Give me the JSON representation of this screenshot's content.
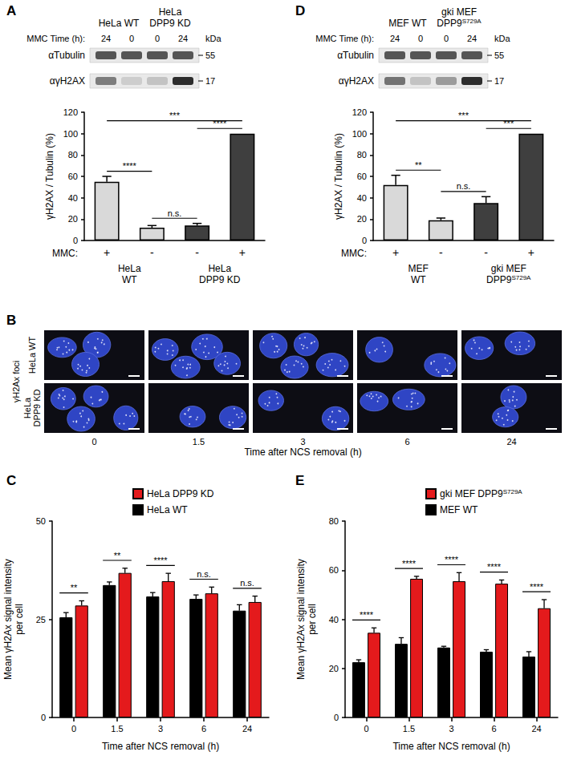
{
  "chart_data": [
    {
      "panel_label": "A",
      "type": "bar",
      "y_label": "γH2AX / Tubulin (%)",
      "x_row_label": "MMC:",
      "categories": [
        "+",
        "-",
        "-",
        "+"
      ],
      "group_labels": [
        "HeLa\nWT",
        "HeLa\nWT",
        "HeLa\nDPP9 KD",
        "HeLa\nDPP9 KD"
      ],
      "values": [
        55,
        12,
        14,
        100
      ],
      "errors": [
        5,
        2,
        2,
        0
      ],
      "colors": [
        "#d9d9d9",
        "#d9d9d9",
        "#3f3f3f",
        "#3f3f3f"
      ],
      "ylim": [
        0,
        120
      ],
      "yticks": [
        0,
        20,
        40,
        60,
        80,
        100,
        120
      ],
      "grid": false,
      "significance": [
        {
          "from": 0,
          "to": 3,
          "label": "***"
        },
        {
          "from": 0,
          "to": 1,
          "label": "****"
        },
        {
          "from": 1,
          "to": 2,
          "label": "n.s."
        },
        {
          "from": 2,
          "to": 3,
          "label": "****"
        }
      ]
    },
    {
      "panel_label": "C",
      "type": "bar",
      "y_label": "Mean γH2Ax signal intensity\nper cell",
      "x_label": "Time after NCS removal (h)",
      "categories": [
        "0",
        "1.5",
        "3",
        "6",
        "24"
      ],
      "legend": "top-left",
      "grid": false,
      "series": [
        {
          "name": "HeLa DPP9 KD",
          "color": "#e41a1c",
          "values": [
            28.5,
            36.8,
            34.7,
            31.6,
            29.4
          ],
          "errors": [
            1.2,
            1.2,
            2.0,
            1.6,
            1.5
          ]
        },
        {
          "name": "HeLa WT",
          "color": "#000000",
          "values": [
            25.5,
            33.7,
            30.8,
            30.2,
            27.2
          ],
          "errors": [
            1.2,
            0.8,
            1.0,
            1.0,
            1.5
          ]
        }
      ],
      "ylim": [
        0,
        50
      ],
      "yticks": [
        0,
        25,
        50
      ],
      "significance": [
        {
          "category": 0,
          "label": "**"
        },
        {
          "category": 1,
          "label": "**"
        },
        {
          "category": 2,
          "label": "****"
        },
        {
          "category": 3,
          "label": "n.s."
        },
        {
          "category": 4,
          "label": "n.s."
        }
      ]
    },
    {
      "panel_label": "D",
      "type": "bar",
      "y_label": "γH2AX / Tubulin (%)",
      "x_row_label": "MMC:",
      "categories": [
        "+",
        "-",
        "-",
        "+"
      ],
      "group_labels": [
        "MEF\nWT",
        "MEF\nWT",
        {
          "text": "gki MEF\nDPP9",
          "sup": "S729A"
        },
        {
          "text": "gki MEF\nDPP9",
          "sup": "S729A"
        }
      ],
      "values": [
        52,
        19,
        35,
        100
      ],
      "errors": [
        9,
        2,
        6,
        0
      ],
      "colors": [
        "#d9d9d9",
        "#d9d9d9",
        "#3f3f3f",
        "#3f3f3f"
      ],
      "ylim": [
        0,
        120
      ],
      "yticks": [
        0,
        20,
        40,
        60,
        80,
        100,
        120
      ],
      "grid": false,
      "significance": [
        {
          "from": 0,
          "to": 3,
          "label": "***"
        },
        {
          "from": 0,
          "to": 1,
          "label": "**"
        },
        {
          "from": 1,
          "to": 2,
          "label": "n.s."
        },
        {
          "from": 2,
          "to": 3,
          "label": "***"
        }
      ]
    },
    {
      "panel_label": "E",
      "type": "bar",
      "y_label": "Mean γH2Ax signal intensity\nper cell",
      "x_label": "Time after NCS removal (h)",
      "categories": [
        "0",
        "1.5",
        "3",
        "6",
        "24"
      ],
      "legend": "top-left",
      "grid": false,
      "series": [
        {
          "name": {
            "text": "gki MEF DPP9",
            "sup": "S729A"
          },
          "color": "#e41a1c",
          "values": [
            34.5,
            56.5,
            55.5,
            54.5,
            44.5
          ],
          "errors": [
            2.0,
            1.0,
            3.5,
            1.5,
            3.5
          ]
        },
        {
          "name": "MEF WT",
          "color": "#000000",
          "values": [
            22.5,
            30.0,
            28.5,
            26.8,
            24.8
          ],
          "errors": [
            1.0,
            2.5,
            0.5,
            0.8,
            2.0
          ]
        }
      ],
      "ylim": [
        0,
        80
      ],
      "yticks": [
        0,
        20,
        40,
        60,
        80
      ],
      "significance": [
        {
          "category": 0,
          "label": "****"
        },
        {
          "category": 1,
          "label": "****"
        },
        {
          "category": 2,
          "label": "****"
        },
        {
          "category": 3,
          "label": "****"
        },
        {
          "category": 4,
          "label": "****"
        }
      ]
    }
  ],
  "blots": [
    {
      "lane_groups": [
        "HeLa WT",
        "HeLa WT",
        "HeLa\nDPP9 KD",
        "HeLa\nDPP9 KD"
      ],
      "row_label": "MMC Time (h):",
      "lanes": [
        24,
        0,
        0,
        24
      ],
      "unit_label": "kDa",
      "bands": [
        {
          "label": "αTubulin",
          "kda": 55,
          "intensity": [
            0.75,
            0.75,
            0.75,
            0.75
          ]
        },
        {
          "label": "αγH2AX",
          "kda": 17,
          "intensity": [
            0.55,
            0.15,
            0.2,
            0.95
          ]
        }
      ]
    },
    {
      "lane_groups": [
        "MEF WT",
        "MEF WT",
        {
          "text": "gki MEF\nDPP9",
          "sup": "S729A"
        },
        {
          "text": "gki MEF\nDPP9",
          "sup": "S729A"
        }
      ],
      "row_label": "MMC Time (h):",
      "lanes": [
        24,
        0,
        0,
        24
      ],
      "unit_label": "kDa",
      "bands": [
        {
          "label": "αTubulin",
          "kda": 55,
          "intensity": [
            0.75,
            0.75,
            0.75,
            0.75
          ]
        },
        {
          "label": "αγH2AX",
          "kda": 17,
          "intensity": [
            0.6,
            0.2,
            0.4,
            0.95
          ]
        }
      ]
    }
  ],
  "micrographs": {
    "panel_label": "B",
    "side_label": "γH2Ax foci",
    "rows": [
      "HeLa WT",
      "HeLa\nDPP9 KD"
    ],
    "columns": [
      0,
      1.5,
      3,
      6,
      24
    ],
    "x_label": "Time after NCS removal (h)"
  }
}
